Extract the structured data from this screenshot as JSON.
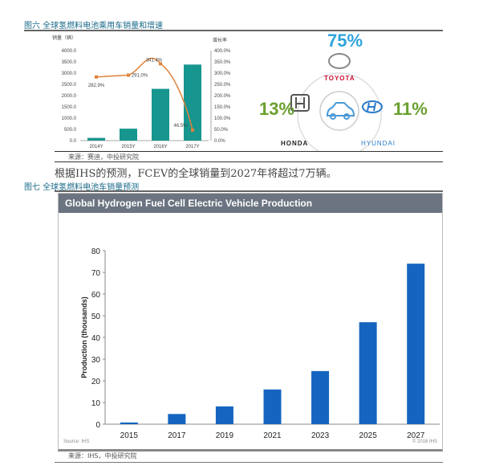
{
  "fig6": {
    "title": "图六 全球氢燃料电池乘用车销量和增速",
    "source": "来源：赛迪，中投研究院"
  },
  "paragraph": "根据IHS的预测，FCEV的全球销量到2027年将超过7万辆。",
  "fig7": {
    "title": "图七 全球氢燃料电池车销量预测",
    "source": "来源：IHS，中投研究院"
  },
  "share": {
    "toyota_pct": "75%",
    "toyota": "TOYOTA",
    "honda_pct": "13%",
    "honda": "HONDA",
    "hyundai_pct": "11%",
    "hyundai": "HYUNDAI"
  },
  "chart_data": [
    {
      "type": "bar",
      "title": "",
      "categories": [
        "2014Y",
        "2015Y",
        "2016Y",
        "2017Y"
      ],
      "ylabel": "销量（辆）",
      "y2label": "增长率",
      "ylim": [
        0,
        4000
      ],
      "y2lim": [
        0,
        400
      ],
      "yticks": [
        "0.0",
        "500.0",
        "1000.0",
        "1500.0",
        "2000.0",
        "2500.0",
        "3000.0",
        "3500.0",
        "4000.0"
      ],
      "y2ticks": [
        "0.0%",
        "50.0%",
        "100.0%",
        "150.0%",
        "200.0%",
        "250.0%",
        "300.0%",
        "350.0%",
        "400.0%"
      ],
      "series": [
        {
          "name": "销量",
          "type": "bar",
          "values": [
            120,
            530,
            2300,
            3380
          ],
          "color": "#16968f"
        },
        {
          "name": "增长率",
          "type": "line",
          "values": [
            282.9,
            291.0,
            341.4,
            46.5
          ],
          "labels": [
            "282.9%",
            "291.0%",
            "341.4%",
            "46.5%"
          ],
          "color": "#e0823a"
        }
      ]
    },
    {
      "type": "bar",
      "title": "Global Hydrogen Fuel Cell Electric Vehicle Production",
      "categories": [
        "2015",
        "2017",
        "2019",
        "2021",
        "2023",
        "2025",
        "2027"
      ],
      "values": [
        0.8,
        4.7,
        8.2,
        16,
        24.5,
        47,
        74
      ],
      "ylabel": "Production (thousands)",
      "xlabel": "",
      "ylim": [
        0,
        80
      ],
      "yticks": [
        "0",
        "10",
        "20",
        "30",
        "40",
        "50",
        "60",
        "70",
        "80"
      ],
      "color": "#1565c0",
      "source": "Source: IHS",
      "copyright": "© 2016 IHS"
    }
  ]
}
